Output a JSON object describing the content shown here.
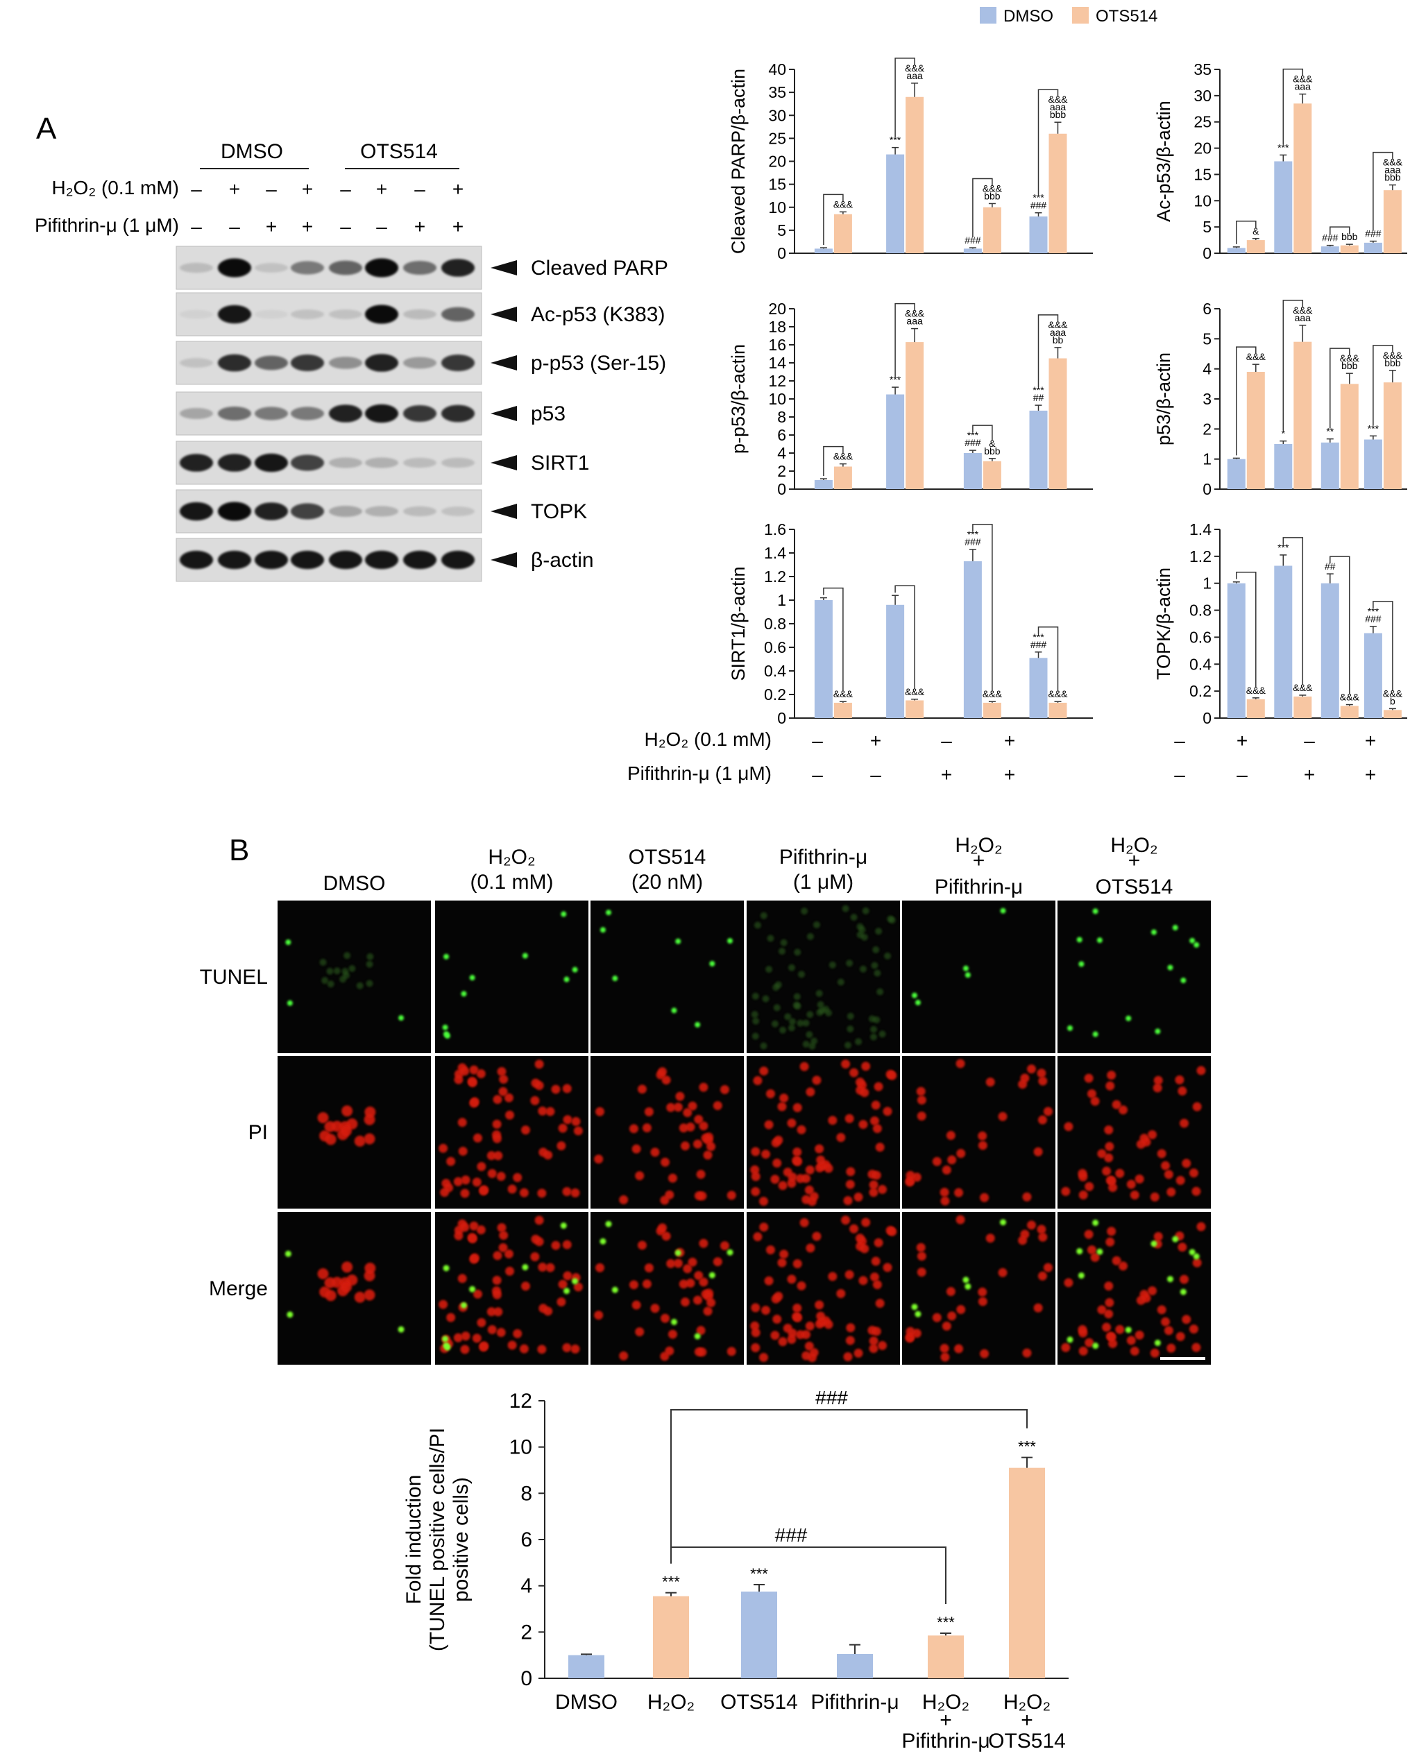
{
  "legend": [
    {
      "name": "DMSO",
      "color": "#a9bfe4"
    },
    {
      "name": "OTS514",
      "color": "#f7c6a2"
    }
  ],
  "colors": {
    "dmso": "#a9bfe4",
    "ots": "#f7c6a2",
    "line": "#222222",
    "blot_bg": "#dcdcdc",
    "micro_bg": "#050505"
  },
  "panel_a": {
    "letter": "A",
    "group_labels": [
      "DMSO",
      "OTS514"
    ],
    "row1_label": "H₂O₂ (0.1 mM)",
    "row1_signs": [
      "–",
      "+",
      "–",
      "+",
      "–",
      "+",
      "–",
      "+"
    ],
    "row2_label": "Pifithrin-μ (1 μM)",
    "row2_signs": [
      "–",
      "–",
      "+",
      "+",
      "–",
      "–",
      "+",
      "+"
    ],
    "blots": [
      {
        "name": "Cleaved PARP",
        "bands": [
          0.15,
          0.95,
          0.12,
          0.45,
          0.55,
          0.95,
          0.5,
          0.85
        ]
      },
      {
        "name": "Ac-p53 (K383)",
        "bands": [
          0.05,
          0.9,
          0.05,
          0.12,
          0.12,
          0.95,
          0.15,
          0.55
        ]
      },
      {
        "name": "p-p53 (Ser-15)",
        "bands": [
          0.12,
          0.8,
          0.55,
          0.75,
          0.35,
          0.85,
          0.3,
          0.75
        ]
      },
      {
        "name": "p53",
        "bands": [
          0.25,
          0.5,
          0.45,
          0.45,
          0.85,
          0.9,
          0.75,
          0.8
        ]
      },
      {
        "name": "SIRT1",
        "bands": [
          0.85,
          0.85,
          0.9,
          0.7,
          0.2,
          0.2,
          0.15,
          0.15
        ]
      },
      {
        "name": "TOPK",
        "bands": [
          0.9,
          0.95,
          0.85,
          0.7,
          0.25,
          0.2,
          0.15,
          0.12
        ]
      },
      {
        "name": "β-actin",
        "bands": [
          0.9,
          0.9,
          0.9,
          0.9,
          0.9,
          0.9,
          0.9,
          0.9
        ]
      }
    ],
    "x_row1_label": "H₂O₂ (0.1 mM)",
    "x_row1_signs": [
      "–",
      "+",
      "–",
      "+"
    ],
    "x_row2_label": "Pifithrin-μ (1 μM)",
    "x_row2_signs": [
      "–",
      "–",
      "+",
      "+"
    ]
  },
  "chart_data": [
    {
      "type": "bar",
      "ylabel": "Cleaved PARP/β-actin",
      "ylim": [
        0,
        40
      ],
      "yticks": [
        0,
        5,
        10,
        15,
        20,
        25,
        30,
        35,
        40
      ],
      "series": [
        {
          "name": "DMSO",
          "values": [
            1,
            21.5,
            1,
            8
          ]
        },
        {
          "name": "OTS514",
          "values": [
            8.5,
            34,
            10,
            26
          ]
        }
      ],
      "err": [
        [
          0.2,
          1.5,
          0.2,
          0.8
        ],
        [
          0.5,
          3,
          0.8,
          2.5
        ]
      ],
      "annotations": [
        [
          "",
          "&&&"
        ],
        [
          "***",
          "aaa &&&"
        ],
        [
          "###",
          "bbb &&&"
        ],
        [
          "### ***",
          "bbb aaa &&&"
        ]
      ]
    },
    {
      "type": "bar",
      "ylabel": "Ac-p53/β-actin",
      "ylim": [
        0,
        35
      ],
      "yticks": [
        0,
        5,
        10,
        15,
        20,
        25,
        30,
        35
      ],
      "series": [
        {
          "name": "DMSO",
          "values": [
            1,
            17.5,
            1.3,
            2
          ]
        },
        {
          "name": "OTS514",
          "values": [
            2.5,
            28.5,
            1.5,
            12
          ]
        }
      ],
      "err": [
        [
          0.2,
          1.2,
          0.2,
          0.3
        ],
        [
          0.3,
          1.8,
          0.2,
          1
        ]
      ],
      "annotations": [
        [
          "",
          "&"
        ],
        [
          "***",
          "aaa &&&"
        ],
        [
          "###",
          "bbb"
        ],
        [
          "###",
          "bbb aaa &&&"
        ]
      ]
    },
    {
      "type": "bar",
      "ylabel": "p-p53/β-actin",
      "ylim": [
        0,
        20
      ],
      "yticks": [
        0,
        2,
        4,
        6,
        8,
        10,
        12,
        14,
        16,
        18,
        20
      ],
      "series": [
        {
          "name": "DMSO",
          "values": [
            1,
            10.5,
            4,
            8.7
          ]
        },
        {
          "name": "OTS514",
          "values": [
            2.5,
            16.3,
            3.1,
            14.5
          ]
        }
      ],
      "err": [
        [
          0.15,
          0.8,
          0.3,
          0.6
        ],
        [
          0.3,
          1.5,
          0.3,
          1.2
        ]
      ],
      "annotations": [
        [
          "",
          "&&&"
        ],
        [
          "***",
          "aaa &&&"
        ],
        [
          "### ***",
          "bbb &"
        ],
        [
          "## ***",
          "bb aaa &&&"
        ]
      ]
    },
    {
      "type": "bar",
      "ylabel": "p53/β-actin",
      "ylim": [
        0,
        6
      ],
      "yticks": [
        0,
        1,
        2,
        3,
        4,
        5,
        6
      ],
      "series": [
        {
          "name": "DMSO",
          "values": [
            1,
            1.5,
            1.55,
            1.65
          ]
        },
        {
          "name": "OTS514",
          "values": [
            3.9,
            4.9,
            3.5,
            3.55
          ]
        }
      ],
      "err": [
        [
          0.03,
          0.1,
          0.12,
          0.12
        ],
        [
          0.25,
          0.55,
          0.35,
          0.4
        ]
      ],
      "annotations": [
        [
          "",
          "&&&"
        ],
        [
          "*",
          "aaa &&&"
        ],
        [
          "**",
          "bbb &&&"
        ],
        [
          "***",
          "bbb &&&"
        ]
      ]
    },
    {
      "type": "bar",
      "ylabel": "SIRT1/β-actin",
      "ylim": [
        0,
        1.6
      ],
      "yticks": [
        0,
        0.2,
        0.4,
        0.6,
        0.8,
        1,
        1.2,
        1.4,
        1.6
      ],
      "series": [
        {
          "name": "DMSO",
          "values": [
            1,
            0.96,
            1.33,
            0.51
          ]
        },
        {
          "name": "OTS514",
          "values": [
            0.13,
            0.15,
            0.13,
            0.13
          ]
        }
      ],
      "err": [
        [
          0.02,
          0.08,
          0.1,
          0.05
        ],
        [
          0.01,
          0.01,
          0.01,
          0.01
        ]
      ],
      "annotations": [
        [
          "",
          "&&&"
        ],
        [
          "",
          "&&&"
        ],
        [
          "### ***",
          "&&&"
        ],
        [
          "### ***",
          "&&&"
        ]
      ]
    },
    {
      "type": "bar",
      "ylabel": "TOPK/β-actin",
      "ylim": [
        0,
        1.4
      ],
      "yticks": [
        0,
        0.2,
        0.4,
        0.6,
        0.8,
        1,
        1.2,
        1.4
      ],
      "series": [
        {
          "name": "DMSO",
          "values": [
            1,
            1.13,
            1,
            0.63
          ]
        },
        {
          "name": "OTS514",
          "values": [
            0.14,
            0.16,
            0.09,
            0.06
          ]
        }
      ],
      "err": [
        [
          0.01,
          0.08,
          0.07,
          0.05
        ],
        [
          0.01,
          0.01,
          0.01,
          0.01
        ]
      ],
      "annotations": [
        [
          "",
          "&&&"
        ],
        [
          "***",
          "&&&"
        ],
        [
          "##",
          "&&&"
        ],
        [
          "### ***",
          "b &&&"
        ]
      ]
    },
    {
      "type": "bar",
      "ylabel": "Fold induction (TUNEL positive cells/PI positive cells)",
      "ylim": [
        0,
        12
      ],
      "yticks": [
        0,
        2,
        4,
        6,
        8,
        10,
        12
      ],
      "categories": [
        "DMSO",
        "H₂O₂",
        "OTS514",
        "Pifithrin-μ",
        "H₂O₂ + Pifithrin-μ",
        "H₂O₂ + OTS514"
      ],
      "values": [
        1,
        3.55,
        3.75,
        1.05,
        1.85,
        9.1
      ],
      "err": [
        0.04,
        0.15,
        0.3,
        0.4,
        0.1,
        0.45
      ],
      "bar_colors": [
        "dmso",
        "ots",
        "dmso",
        "dmso",
        "ots",
        "ots"
      ],
      "annotations": [
        "",
        "***",
        "***",
        "",
        "***",
        "***"
      ],
      "brackets": [
        {
          "from": 1,
          "to": 5,
          "label": "###"
        },
        {
          "from": 1,
          "to": 4,
          "label": "###"
        }
      ]
    }
  ],
  "panel_b": {
    "letter": "B",
    "columns": [
      "DMSO",
      "H₂O₂ (0.1 mM)",
      "OTS514 (20 nM)",
      "Pifithrin-μ (1 μM)",
      "H₂O₂ + Pifithrin-μ",
      "H₂O₂ + OTS514"
    ],
    "rows": [
      "TUNEL",
      "PI",
      "Merge"
    ]
  }
}
